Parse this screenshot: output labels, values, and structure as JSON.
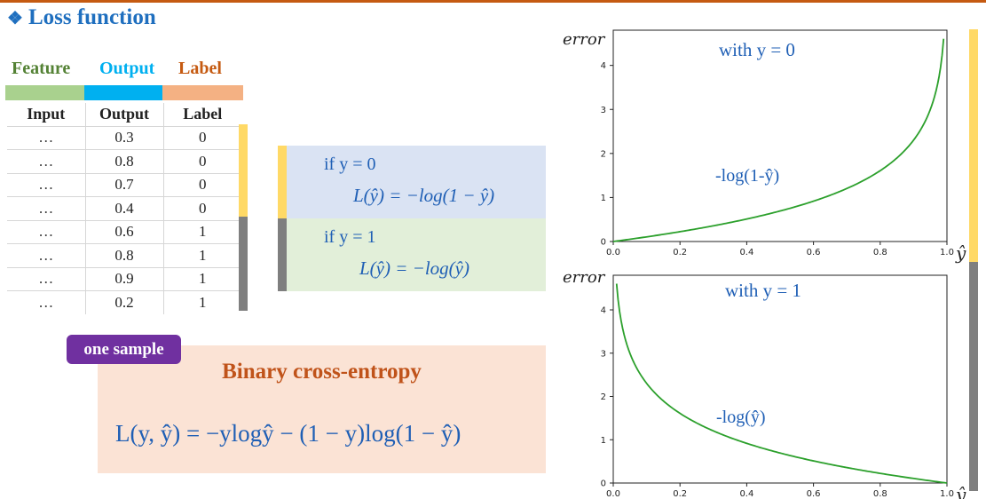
{
  "title": {
    "bullet": "❖",
    "text": "Loss function"
  },
  "legend": [
    {
      "label": "Feature",
      "color": "#548235",
      "bar_color": "#a9d18e"
    },
    {
      "label": "Output",
      "color": "#00b0f0",
      "bar_color": "#00b0f0"
    },
    {
      "label": "Label",
      "color": "#c55a11",
      "bar_color": "#f4b183"
    }
  ],
  "table": {
    "headers": [
      "Input",
      "Output",
      "Label"
    ],
    "rows": [
      [
        "…",
        "0.3",
        "0"
      ],
      [
        "…",
        "0.8",
        "0"
      ],
      [
        "…",
        "0.7",
        "0"
      ],
      [
        "…",
        "0.4",
        "0"
      ],
      [
        "…",
        "0.6",
        "1"
      ],
      [
        "…",
        "0.8",
        "1"
      ],
      [
        "…",
        "0.9",
        "1"
      ],
      [
        "…",
        "0.2",
        "1"
      ]
    ]
  },
  "conditions": [
    {
      "text": "if y = 0",
      "formula": "L(ŷ) = −log(1 − ŷ)",
      "bg": "#dae3f3",
      "strip": "#ffd966"
    },
    {
      "text": "if y = 1",
      "formula": "L(ŷ) = −log(ŷ)",
      "bg": "#e2efd9",
      "strip": "#7f7f7f"
    }
  ],
  "bce": {
    "tag": "one sample",
    "title": "Binary cross-entropy",
    "formula": "L(y, ŷ) = −ylogŷ − (1 − y)log(1 − ŷ)"
  },
  "colors": {
    "yellow": "#ffd966",
    "gray": "#7f7f7f",
    "curve": "#2ca02c",
    "annot": "#1f5fb5"
  },
  "chart_data": [
    {
      "type": "line",
      "ylabel": "error",
      "xlabel": "ŷ",
      "annotation_title": "with y = 0",
      "curve_label": "-log(1-ŷ)",
      "xlim": [
        0,
        1
      ],
      "ylim": [
        0,
        4.8
      ],
      "xticks": [
        "0.0",
        "0.2",
        "0.4",
        "0.6",
        "0.8",
        "1.0"
      ],
      "yticks": [
        "0",
        "1",
        "2",
        "3",
        "4"
      ],
      "function": "neg_log_one_minus",
      "x_range": [
        0.0,
        0.99
      ]
    },
    {
      "type": "line",
      "ylabel": "error",
      "xlabel": "ŷ",
      "annotation_title": "with y = 1",
      "curve_label": "-log(ŷ)",
      "xlim": [
        0,
        1
      ],
      "ylim": [
        0,
        4.8
      ],
      "xticks": [
        "0.0",
        "0.2",
        "0.4",
        "0.6",
        "0.8",
        "1.0"
      ],
      "yticks": [
        "0",
        "1",
        "2",
        "3",
        "4"
      ],
      "function": "neg_log",
      "x_range": [
        0.01,
        1.0
      ]
    }
  ]
}
